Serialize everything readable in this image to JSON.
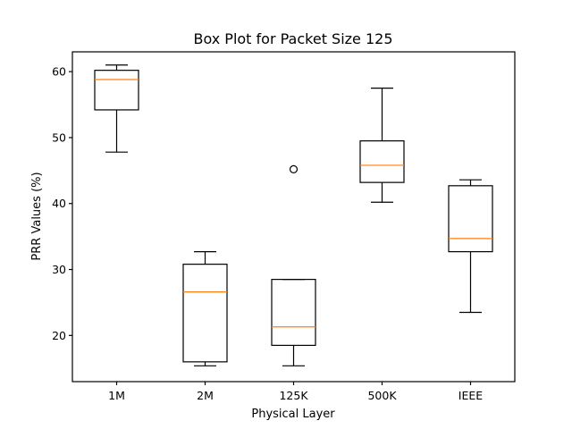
{
  "chart_data": {
    "type": "box",
    "title": "Box Plot for Packet Size 125",
    "xlabel": "Physical Layer",
    "ylabel": "PRR Values (%)",
    "ylim": [
      13,
      63
    ],
    "yticks": [
      "20",
      "30",
      "40",
      "50",
      "60"
    ],
    "categories": [
      "1M",
      "2M",
      "125K",
      "500K",
      "IEEE"
    ],
    "boxes": [
      {
        "whisker_low": 47.8,
        "q1": 54.2,
        "median": 58.8,
        "q3": 60.2,
        "whisker_high": 61.0,
        "outliers": []
      },
      {
        "whisker_low": 15.4,
        "q1": 16.0,
        "median": 26.6,
        "q3": 30.8,
        "whisker_high": 32.7,
        "outliers": []
      },
      {
        "whisker_low": 15.4,
        "q1": 18.5,
        "median": 21.3,
        "q3": 28.5,
        "whisker_high": 28.5,
        "outliers": [
          45.2
        ]
      },
      {
        "whisker_low": 40.2,
        "q1": 43.2,
        "median": 45.8,
        "q3": 49.5,
        "whisker_high": 57.5,
        "outliers": []
      },
      {
        "whisker_low": 23.5,
        "q1": 32.7,
        "median": 34.7,
        "q3": 42.7,
        "whisker_high": 43.6,
        "outliers": []
      }
    ],
    "colors": {
      "box": "#000000",
      "median": "#ff7f0e"
    },
    "grid": false,
    "legend": "none"
  }
}
